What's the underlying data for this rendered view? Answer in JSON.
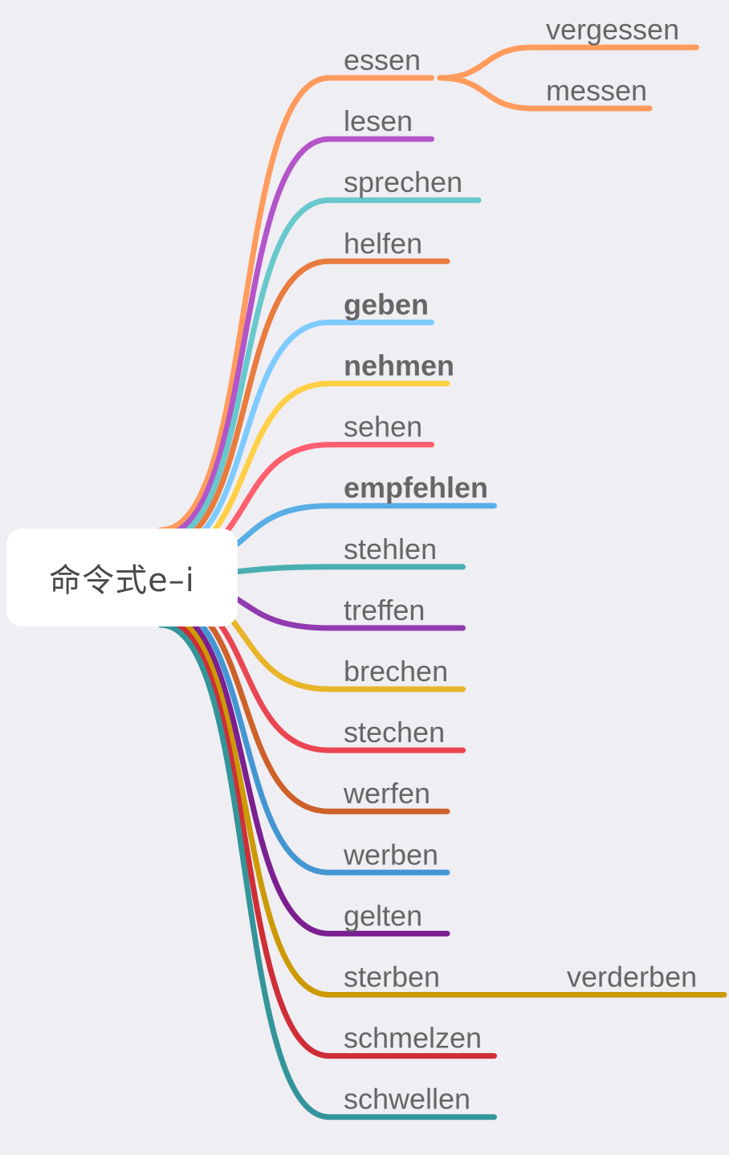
{
  "root": {
    "label": "命令式e–i"
  },
  "branches": [
    {
      "label": "essen",
      "bold": false,
      "color": "#ff9b5c",
      "children": [
        {
          "label": "vergessen"
        },
        {
          "label": "messen"
        }
      ]
    },
    {
      "label": "lesen",
      "bold": false,
      "color": "#b355c9",
      "children": []
    },
    {
      "label": "sprechen",
      "bold": false,
      "color": "#68c8cc",
      "children": []
    },
    {
      "label": "helfen",
      "bold": false,
      "color": "#e87b3e",
      "children": []
    },
    {
      "label": "geben",
      "bold": true,
      "color": "#7ecbff",
      "children": []
    },
    {
      "label": "nehmen",
      "bold": true,
      "color": "#ffd045",
      "children": []
    },
    {
      "label": "sehen",
      "bold": false,
      "color": "#ff5f6e",
      "children": []
    },
    {
      "label": "empfehlen",
      "bold": true,
      "color": "#5aaee6",
      "children": []
    },
    {
      "label": "stehlen",
      "bold": false,
      "color": "#4aafb1",
      "children": []
    },
    {
      "label": "treffen",
      "bold": false,
      "color": "#913bb0",
      "children": []
    },
    {
      "label": "brechen",
      "bold": false,
      "color": "#e8b528",
      "children": []
    },
    {
      "label": "stechen",
      "bold": false,
      "color": "#ea4552",
      "children": []
    },
    {
      "label": "werfen",
      "bold": false,
      "color": "#cd612a",
      "children": []
    },
    {
      "label": "werben",
      "bold": false,
      "color": "#4496d2",
      "children": []
    },
    {
      "label": "gelten",
      "bold": false,
      "color": "#7b1f91",
      "children": []
    },
    {
      "label": "sterben",
      "bold": false,
      "color": "#cc9a06",
      "children": [
        {
          "label": "verderben"
        }
      ]
    },
    {
      "label": "schmelzen",
      "bold": false,
      "color": "#cf2e37",
      "children": []
    },
    {
      "label": "schwellen",
      "bold": false,
      "color": "#33959a",
      "children": []
    }
  ]
}
